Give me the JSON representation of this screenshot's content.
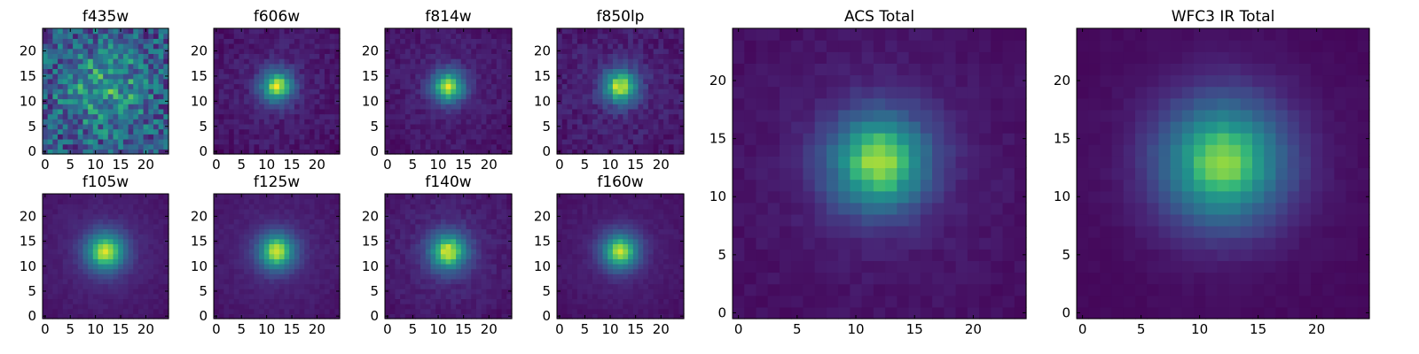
{
  "figure": {
    "description_free": true
  },
  "chart_data": [
    {
      "type": "heatmap",
      "title": "f435w",
      "xlim": [
        0,
        24
      ],
      "ylim": [
        0,
        24
      ],
      "xticks": [
        0,
        5,
        10,
        15,
        20
      ],
      "yticks": [
        0,
        5,
        10,
        15,
        20
      ],
      "colormap": "viridis",
      "grid": false,
      "peak": [
        12,
        13
      ]
    },
    {
      "type": "heatmap",
      "title": "f606w",
      "xlim": [
        0,
        24
      ],
      "ylim": [
        0,
        24
      ],
      "xticks": [
        0,
        5,
        10,
        15,
        20
      ],
      "yticks": [
        0,
        5,
        10,
        15,
        20
      ],
      "colormap": "viridis",
      "grid": false,
      "peak": [
        12,
        13
      ]
    },
    {
      "type": "heatmap",
      "title": "f814w",
      "xlim": [
        0,
        24
      ],
      "ylim": [
        0,
        24
      ],
      "xticks": [
        0,
        5,
        10,
        15,
        20
      ],
      "yticks": [
        0,
        5,
        10,
        15,
        20
      ],
      "colormap": "viridis",
      "grid": false,
      "peak": [
        12,
        13
      ]
    },
    {
      "type": "heatmap",
      "title": "f850lp",
      "xlim": [
        0,
        24
      ],
      "ylim": [
        0,
        24
      ],
      "xticks": [
        0,
        5,
        10,
        15,
        20
      ],
      "yticks": [
        0,
        5,
        10,
        15,
        20
      ],
      "colormap": "viridis",
      "grid": false,
      "peak": [
        12,
        13
      ]
    },
    {
      "type": "heatmap",
      "title": "ACS Total",
      "xlim": [
        0,
        24
      ],
      "ylim": [
        0,
        24
      ],
      "xticks": [
        0,
        5,
        10,
        15,
        20
      ],
      "yticks": [
        0,
        5,
        10,
        15,
        20
      ],
      "colormap": "viridis",
      "grid": false,
      "peak": [
        12,
        13
      ]
    },
    {
      "type": "heatmap",
      "title": "WFC3 IR Total",
      "xlim": [
        0,
        24
      ],
      "ylim": [
        0,
        24
      ],
      "xticks": [
        0,
        5,
        10,
        15,
        20
      ],
      "yticks": [
        0,
        5,
        10,
        15,
        20
      ],
      "colormap": "viridis",
      "grid": false,
      "peak": [
        12,
        13
      ]
    },
    {
      "type": "heatmap",
      "title": "f105w",
      "xlim": [
        0,
        24
      ],
      "ylim": [
        0,
        24
      ],
      "xticks": [
        0,
        5,
        10,
        15,
        20
      ],
      "yticks": [
        0,
        5,
        10,
        15,
        20
      ],
      "colormap": "viridis",
      "grid": false,
      "peak": [
        12,
        13
      ]
    },
    {
      "type": "heatmap",
      "title": "f125w",
      "xlim": [
        0,
        24
      ],
      "ylim": [
        0,
        24
      ],
      "xticks": [
        0,
        5,
        10,
        15,
        20
      ],
      "yticks": [
        0,
        5,
        10,
        15,
        20
      ],
      "colormap": "viridis",
      "grid": false,
      "peak": [
        12,
        13
      ]
    },
    {
      "type": "heatmap",
      "title": "f140w",
      "xlim": [
        0,
        24
      ],
      "ylim": [
        0,
        24
      ],
      "xticks": [
        0,
        5,
        10,
        15,
        20
      ],
      "yticks": [
        0,
        5,
        10,
        15,
        20
      ],
      "colormap": "viridis",
      "grid": false,
      "peak": [
        12,
        13
      ]
    },
    {
      "type": "heatmap",
      "title": "f160w",
      "xlim": [
        0,
        24
      ],
      "ylim": [
        0,
        24
      ],
      "xticks": [
        0,
        5,
        10,
        15,
        20
      ],
      "yticks": [
        0,
        5,
        10,
        15,
        20
      ],
      "colormap": "viridis",
      "grid": false,
      "peak": [
        12,
        13
      ]
    }
  ]
}
